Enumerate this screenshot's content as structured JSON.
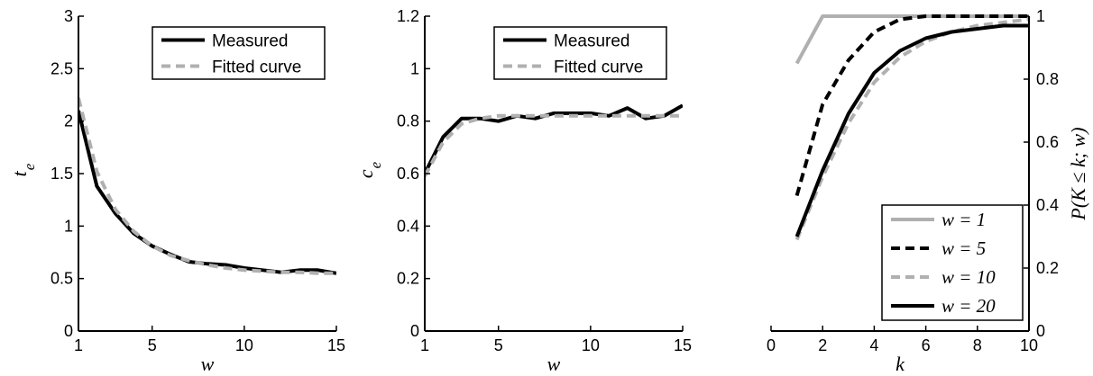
{
  "chart_data": [
    {
      "type": "line",
      "x": [
        1,
        2,
        3,
        4,
        5,
        6,
        7,
        8,
        9,
        10,
        11,
        12,
        13,
        14,
        15
      ],
      "series": [
        {
          "name": "Measured",
          "color": "#000000",
          "dash": "solid",
          "values": [
            2.1,
            1.38,
            1.12,
            0.93,
            0.81,
            0.73,
            0.66,
            0.64,
            0.63,
            0.6,
            0.58,
            0.56,
            0.58,
            0.58,
            0.55
          ]
        },
        {
          "name": "Fitted curve",
          "color": "#b0b0b0",
          "dash": "dashed",
          "values": [
            2.22,
            1.52,
            1.16,
            0.95,
            0.81,
            0.72,
            0.67,
            0.63,
            0.6,
            0.58,
            0.57,
            0.56,
            0.56,
            0.55,
            0.55
          ]
        }
      ],
      "xlabel": "w",
      "ylabel_main": "t",
      "ylabel_sub": "e",
      "xlim": [
        1,
        15
      ],
      "ylim": [
        0,
        3
      ],
      "xticks": [
        "1",
        "5",
        "10",
        "15"
      ],
      "yticks": [
        "0",
        "0.5",
        "1",
        "1.5",
        "2",
        "2.5",
        "3"
      ],
      "legend_position": "top-right",
      "grid": false
    },
    {
      "type": "line",
      "x": [
        1,
        2,
        3,
        4,
        5,
        6,
        7,
        8,
        9,
        10,
        11,
        12,
        13,
        14,
        15
      ],
      "series": [
        {
          "name": "Measured",
          "color": "#000000",
          "dash": "solid",
          "values": [
            0.6,
            0.74,
            0.81,
            0.81,
            0.8,
            0.82,
            0.81,
            0.83,
            0.83,
            0.83,
            0.82,
            0.85,
            0.81,
            0.82,
            0.86
          ]
        },
        {
          "name": "Fitted curve",
          "color": "#b0b0b0",
          "dash": "dashed",
          "values": [
            0.59,
            0.72,
            0.79,
            0.81,
            0.82,
            0.82,
            0.82,
            0.82,
            0.82,
            0.82,
            0.82,
            0.82,
            0.82,
            0.82,
            0.82
          ]
        }
      ],
      "xlabel": "w",
      "ylabel_main": "c",
      "ylabel_sub": "e",
      "xlim": [
        1,
        15
      ],
      "ylim": [
        0,
        1.2
      ],
      "xticks": [
        "1",
        "5",
        "10",
        "15"
      ],
      "yticks": [
        "0",
        "0.2",
        "0.4",
        "0.6",
        "0.8",
        "1",
        "1.2"
      ],
      "legend_position": "top-right",
      "grid": false
    },
    {
      "type": "line",
      "x": [
        1,
        2,
        3,
        4,
        5,
        6,
        7,
        8,
        9,
        10
      ],
      "series": [
        {
          "name": "w = 1",
          "color": "#b0b0b0",
          "dash": "solid",
          "values": [
            0.85,
            1.0,
            1.0,
            1.0,
            1.0,
            1.0,
            1.0,
            1.0,
            1.0,
            1.0
          ]
        },
        {
          "name": "w = 5",
          "color": "#000000",
          "dash": "dashed",
          "values": [
            0.43,
            0.72,
            0.86,
            0.95,
            0.99,
            1.0,
            1.0,
            1.0,
            1.0,
            1.0
          ]
        },
        {
          "name": "w = 10",
          "color": "#b0b0b0",
          "dash": "dashed",
          "values": [
            0.29,
            0.49,
            0.66,
            0.79,
            0.87,
            0.92,
            0.95,
            0.97,
            0.98,
            0.99
          ]
        },
        {
          "name": "w = 20",
          "color": "#000000",
          "dash": "solid",
          "values": [
            0.3,
            0.51,
            0.69,
            0.82,
            0.89,
            0.93,
            0.95,
            0.96,
            0.97,
            0.97
          ]
        }
      ],
      "xlabel": "k",
      "ylabel_right": "P(K ≤ k; w)",
      "xlim": [
        0,
        10
      ],
      "ylim": [
        0,
        1
      ],
      "xticks": [
        "0",
        "2",
        "4",
        "6",
        "8",
        "10"
      ],
      "yticks": [
        "0",
        "0.2",
        "0.4",
        "0.6",
        "0.8",
        "1"
      ],
      "yaxis_side": "right",
      "legend_position": "bottom-right",
      "grid": false
    }
  ]
}
